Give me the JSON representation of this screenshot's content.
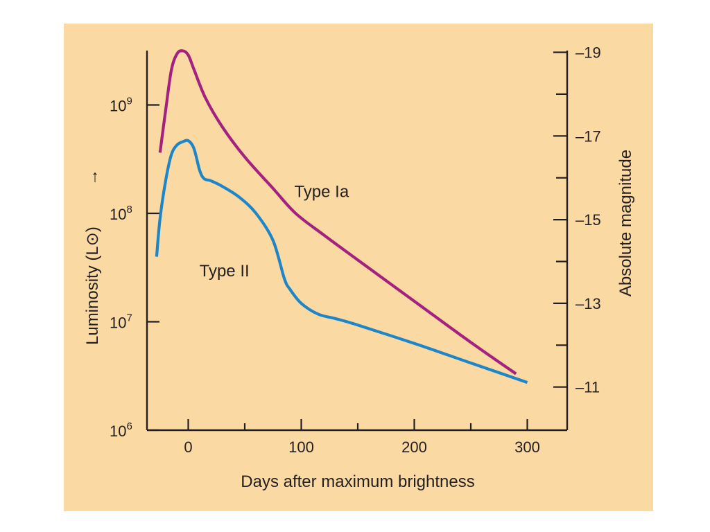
{
  "chart_data": {
    "type": "line",
    "xlabel": "Days after maximum brightness",
    "ylabel": "Luminosity (L⊙)",
    "ylabel_arrow": "→",
    "y2label": "Absolute magnitude",
    "xlim": [
      -35,
      330
    ],
    "ylim_log10": [
      6,
      9.5
    ],
    "y_scale": "log",
    "x_ticks": [
      0,
      100,
      200,
      300
    ],
    "x_tick_labels": [
      "0",
      "100",
      "200",
      "300"
    ],
    "y_ticks_log10": [
      6,
      7,
      8,
      9
    ],
    "y_tick_labels": [
      {
        "base": "10",
        "exp": "6"
      },
      {
        "base": "10",
        "exp": "7"
      },
      {
        "base": "10",
        "exp": "8"
      },
      {
        "base": "10",
        "exp": "9"
      }
    ],
    "y2_ticks_magnitude": [
      -19,
      -17,
      -15,
      -13,
      -11
    ],
    "y2_tick_labels": [
      "–19",
      "–17",
      "–15",
      "–13",
      "–11"
    ],
    "y2_magnitude_range": [
      -10,
      -19
    ],
    "grid": false,
    "colors": {
      "background": "#fbd9a3",
      "axis": "#231f20",
      "type_ia": "#a3227f",
      "type_ii": "#1d85c8"
    },
    "series": [
      {
        "name": "Type Ia",
        "x": [
          -25,
          -20,
          -15,
          -10,
          -5,
          0,
          5,
          15,
          30,
          50,
          75,
          95,
          120,
          150,
          200,
          250,
          290
        ],
        "y_log10": [
          8.56,
          8.95,
          9.32,
          9.47,
          9.5,
          9.46,
          9.33,
          9.07,
          8.8,
          8.52,
          8.23,
          8.0,
          7.8,
          7.57,
          7.19,
          6.81,
          6.52
        ]
      },
      {
        "name": "Type II",
        "x": [
          -28,
          -25,
          -20,
          -15,
          -10,
          -5,
          0,
          5,
          10,
          14,
          20,
          30,
          45,
          60,
          75,
          85,
          90,
          100,
          115,
          130,
          150,
          200,
          250,
          300
        ],
        "y_log10": [
          7.6,
          7.95,
          8.3,
          8.54,
          8.63,
          8.66,
          8.67,
          8.6,
          8.4,
          8.32,
          8.3,
          8.25,
          8.15,
          8.0,
          7.75,
          7.4,
          7.3,
          7.17,
          7.07,
          7.03,
          6.97,
          6.8,
          6.62,
          6.44
        ]
      }
    ],
    "annotations": [
      {
        "text": "Type Ia",
        "x": 118,
        "y_log10": 8.15
      },
      {
        "text": "Type II",
        "x": 32,
        "y_log10": 7.42
      }
    ]
  }
}
